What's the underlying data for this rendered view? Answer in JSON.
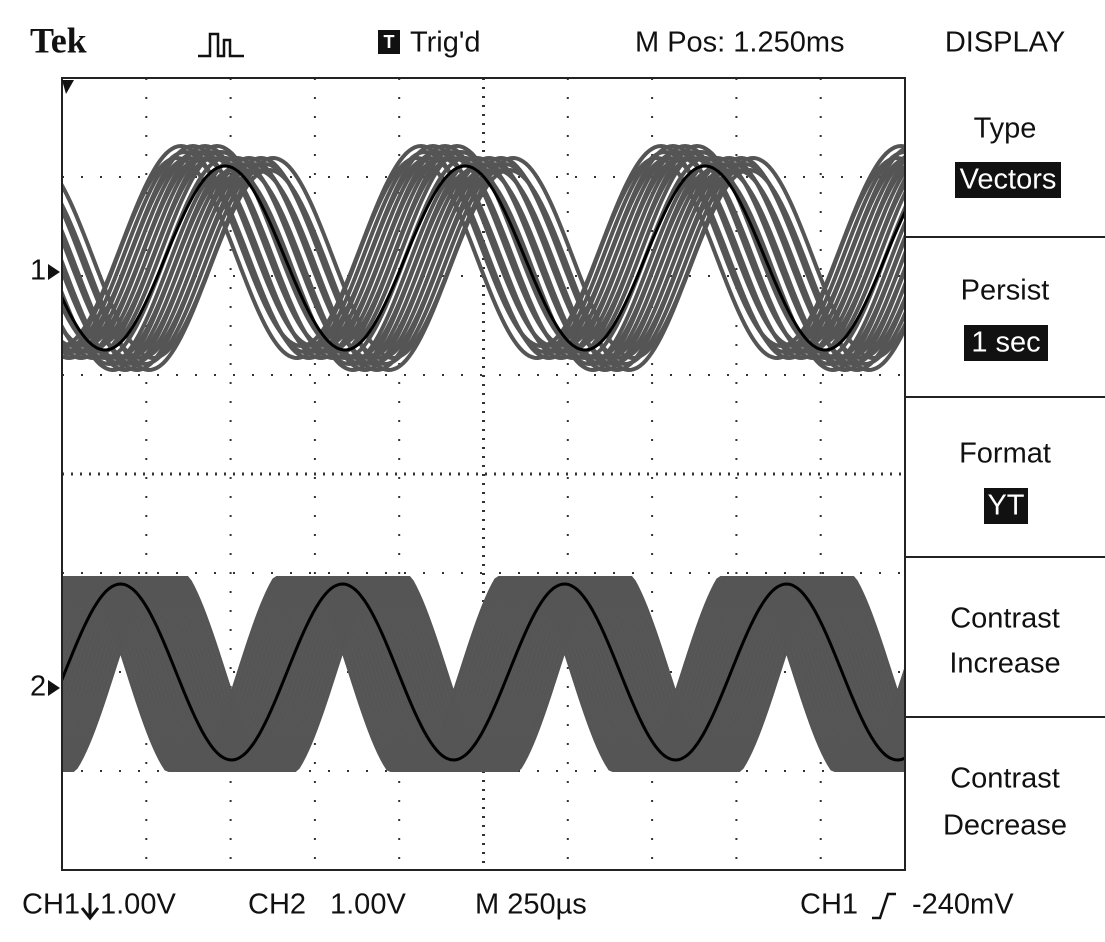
{
  "header": {
    "brand": "Tek",
    "trigger_icon": "T",
    "trigger_status": "Trig'd",
    "position": "M Pos: 1.250ms",
    "menu_title": "DISPLAY"
  },
  "menu": [
    {
      "label": "Type",
      "value": "Vectors"
    },
    {
      "label": "Persist",
      "value": "1 sec"
    },
    {
      "label": "Format",
      "value": "YT"
    },
    {
      "label": "Contrast",
      "value": "Increase"
    },
    {
      "label": "Contrast",
      "value": "Decrease"
    }
  ],
  "markers": [
    "1",
    "2"
  ],
  "footer": {
    "ch1": "CH1",
    "ch1_scale": "1.00V",
    "ch2": "CH2",
    "ch2_scale": "1.00V",
    "timebase": "M 250µs",
    "trigger_source": "CH1",
    "trigger_level": "-240mV"
  }
}
